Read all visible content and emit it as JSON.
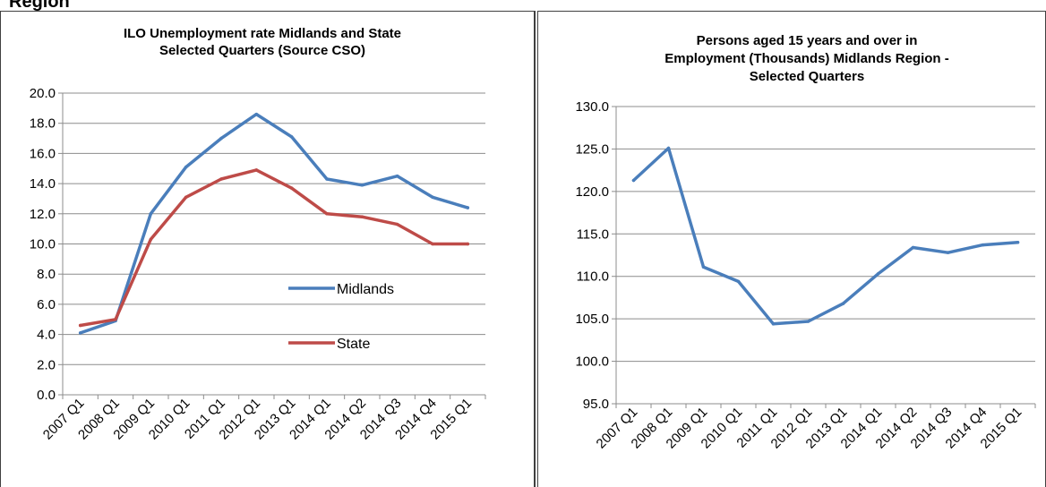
{
  "page": {
    "cut_title": "Region"
  },
  "chart_data": [
    {
      "type": "line",
      "title_lines": [
        "ILO Unemployment rate Midlands and State",
        "Selected Quarters  (Source CSO)"
      ],
      "categories": [
        "2007 Q1",
        "2008 Q1",
        "2009 Q1",
        "2010 Q1",
        "2011 Q1",
        "2012 Q1",
        "2013 Q1",
        "2014 Q1",
        "2014 Q2",
        "2014 Q3",
        "2014 Q4",
        "2015 Q1"
      ],
      "yticks": [
        "0.0",
        "2.0",
        "4.0",
        "6.0",
        "8.0",
        "10.0",
        "12.0",
        "14.0",
        "16.0",
        "18.0",
        "20.0"
      ],
      "ylim": [
        0,
        20
      ],
      "grid": true,
      "legend_position": "inside-right",
      "series": [
        {
          "name": "Midlands",
          "color": "#4a7ebb",
          "values": [
            4.1,
            4.9,
            12.0,
            15.1,
            17.0,
            18.6,
            17.1,
            14.3,
            13.9,
            14.5,
            13.1,
            12.4
          ]
        },
        {
          "name": "State",
          "color": "#be4b48",
          "values": [
            4.6,
            5.0,
            10.3,
            13.1,
            14.3,
            14.9,
            13.7,
            12.0,
            11.8,
            11.3,
            10.0,
            10.0
          ]
        }
      ]
    },
    {
      "type": "line",
      "title_lines": [
        "Persons aged 15 years and over in",
        "Employment (Thousands) Midlands Region -",
        "Selected Quarters"
      ],
      "categories": [
        "2007 Q1",
        "2008 Q1",
        "2009 Q1",
        "2010 Q1",
        "2011 Q1",
        "2012 Q1",
        "2013 Q1",
        "2014 Q1",
        "2014 Q2",
        "2014 Q3",
        "2014 Q4",
        "2015 Q1"
      ],
      "yticks": [
        "95.0",
        "100.0",
        "105.0",
        "110.0",
        "115.0",
        "120.0",
        "125.0",
        "130.0"
      ],
      "ylim": [
        95,
        130
      ],
      "grid": true,
      "series": [
        {
          "color": "#4a7ebb",
          "values": [
            121.3,
            125.1,
            111.1,
            109.4,
            104.4,
            104.7,
            106.8,
            110.3,
            113.4,
            112.8,
            113.7,
            114.0
          ]
        }
      ]
    }
  ]
}
